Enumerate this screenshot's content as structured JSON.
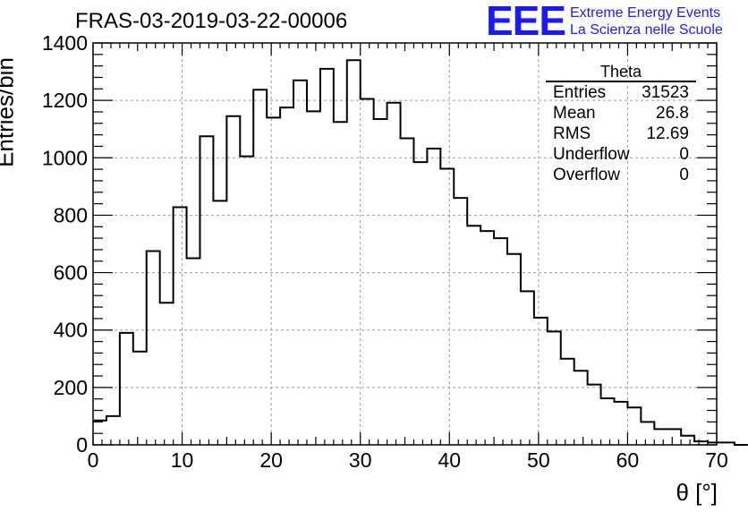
{
  "header": {
    "run_title": "FRAS-03-2019-03-22-00006",
    "logo_mark": "EEE",
    "logo_line1": "Extreme Energy Events",
    "logo_line2": "La Scienza nelle Scuole"
  },
  "stats_box": {
    "title": "Theta",
    "rows": [
      {
        "label": "Entries",
        "value": "31523"
      },
      {
        "label": "Mean",
        "value": "26.8"
      },
      {
        "label": "RMS",
        "value": "12.69"
      },
      {
        "label": "Underflow",
        "value": "0"
      },
      {
        "label": "Overflow",
        "value": "0"
      }
    ]
  },
  "chart_data": {
    "type": "histogram",
    "title": "FRAS-03-2019-03-22-00006",
    "xlabel": "θ [°]",
    "ylabel": "Entries/bin",
    "xlim": [
      0,
      70
    ],
    "ylim": [
      0,
      1400
    ],
    "x_ticks": [
      0,
      10,
      20,
      30,
      40,
      50,
      60,
      70
    ],
    "y_ticks": [
      0,
      200,
      400,
      600,
      800,
      1000,
      1200,
      1400
    ],
    "grid": true,
    "line_color": "#000000",
    "bin_width": 1.5,
    "bin_edges_start": 0,
    "values": [
      85,
      100,
      390,
      325,
      675,
      495,
      828,
      650,
      1075,
      850,
      1145,
      1005,
      1237,
      1140,
      1175,
      1270,
      1162,
      1310,
      1125,
      1340,
      1205,
      1135,
      1192,
      1068,
      985,
      1032,
      962,
      860,
      763,
      745,
      720,
      665,
      535,
      443,
      395,
      300,
      258,
      210,
      162,
      150,
      130,
      80,
      55,
      55,
      32,
      12,
      8,
      8,
      0
    ]
  }
}
